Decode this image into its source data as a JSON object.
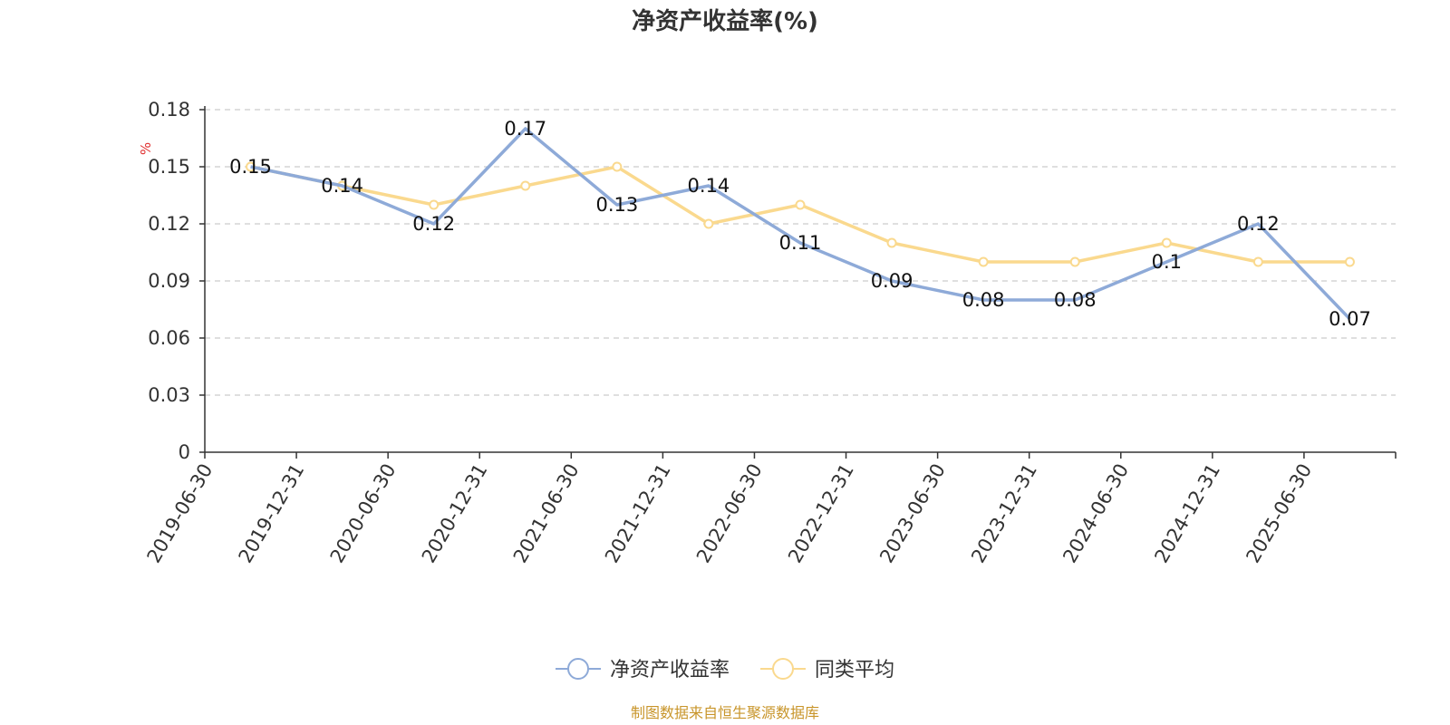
{
  "chart_data": {
    "type": "line",
    "title": "净资产收益率(%)",
    "ylabel": "%",
    "ylim": [
      0,
      0.18
    ],
    "yticks": [
      "0",
      "0.03",
      "0.06",
      "0.09",
      "0.12",
      "0.15",
      "0.18"
    ],
    "categories": [
      "2019-06-30",
      "2019-12-31",
      "2020-06-30",
      "2020-12-31",
      "2021-06-30",
      "2021-12-31",
      "2022-06-30",
      "2022-12-31",
      "2023-06-30",
      "2023-12-31",
      "2024-06-30",
      "2024-12-31",
      "2025-06-30"
    ],
    "series": [
      {
        "name": "净资产收益率",
        "color": "#8eaad8",
        "values": [
          0.15,
          0.14,
          0.12,
          0.17,
          0.13,
          0.14,
          0.11,
          0.09,
          0.08,
          0.08,
          0.1,
          0.12,
          0.07
        ],
        "labels": [
          "0.15",
          "0.14",
          "0.12",
          "0.17",
          "0.13",
          "0.14",
          "0.11",
          "0.09",
          "0.08",
          "0.08",
          "0.1",
          "0.12",
          "0.07"
        ]
      },
      {
        "name": "同类平均",
        "color": "#fad98e",
        "values": [
          0.15,
          0.14,
          0.13,
          0.14,
          0.15,
          0.12,
          0.13,
          0.11,
          0.1,
          0.1,
          0.11,
          0.1,
          0.1
        ]
      }
    ],
    "grid": true,
    "legend": "bottom-center"
  },
  "source": "制图数据来自恒生聚源数据库",
  "colors": {
    "axis": "#333333",
    "grid": "#cccccc",
    "unit": "#e03030",
    "source": "#c8952a"
  }
}
